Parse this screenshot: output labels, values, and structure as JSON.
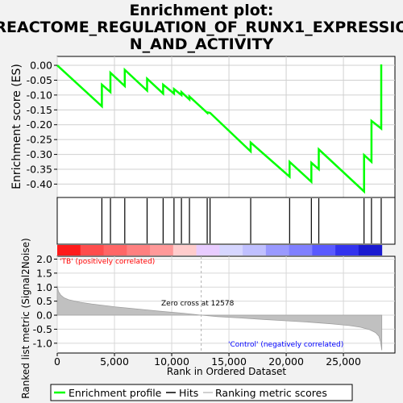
{
  "title_line1": "Enrichment plot:",
  "title_line2": "REACTOME_REGULATION_OF_RUNX1_EXPRESSIO",
  "title_line3": "N_AND_ACTIVITY",
  "colors": {
    "curve": "#00ff00",
    "ranking_fill": "#c0c0c0",
    "zero_line": "#b0b0b0",
    "tb_label": "#ff0000",
    "control_label": "#0000ff",
    "axis": "#000000"
  },
  "legend": {
    "enrichment_profile": "Enrichment profile",
    "hits": "Hits",
    "ranking_metric": "Ranking metric scores"
  },
  "annotations": {
    "tb": "'TB' (positively correlated)",
    "control": "'Control' (negatively correlated)",
    "zero_cross": "Zero cross at 12578"
  },
  "chart_data": [
    {
      "type": "line",
      "name": "enrichment-score",
      "ylabel": "Enrichment score (ES)",
      "ylim": [
        -0.445,
        0.03
      ],
      "xlim": [
        0,
        29500
      ],
      "yticks": [
        0.0,
        -0.05,
        -0.1,
        -0.15,
        -0.2,
        -0.25,
        -0.3,
        -0.35,
        -0.4
      ],
      "ytick_labels": [
        "0.00",
        "-0.05",
        "-0.10",
        "-0.15",
        "-0.20",
        "-0.25",
        "-0.30",
        "-0.35",
        "-0.40"
      ],
      "grid": true,
      "x": [
        0,
        3900,
        3900,
        4650,
        4650,
        5900,
        5900,
        7850,
        7850,
        9250,
        9250,
        10200,
        10200,
        10850,
        10850,
        11550,
        11550,
        13100,
        13100,
        13350,
        13350,
        16900,
        16900,
        20300,
        20300,
        22200,
        22200,
        22850,
        22850,
        26800,
        26800,
        27450,
        27450,
        28300,
        28300
      ],
      "y": [
        0.0,
        -0.138,
        -0.065,
        -0.09,
        -0.025,
        -0.07,
        -0.015,
        -0.085,
        -0.045,
        -0.095,
        -0.065,
        -0.095,
        -0.08,
        -0.1,
        -0.09,
        -0.115,
        -0.105,
        -0.16,
        -0.158,
        -0.16,
        -0.16,
        -0.29,
        -0.26,
        -0.375,
        -0.325,
        -0.392,
        -0.328,
        -0.35,
        -0.283,
        -0.425,
        -0.302,
        -0.325,
        -0.187,
        -0.213,
        0.003
      ]
    },
    {
      "type": "hits",
      "name": "hits",
      "x": [
        3900,
        4650,
        5900,
        7850,
        9250,
        10200,
        10850,
        11550,
        13100,
        13350,
        16900,
        20300,
        22200,
        22850,
        26800,
        27450,
        28300
      ]
    },
    {
      "type": "area",
      "name": "ranking-metric",
      "xlabel": "Rank in Ordered Dataset",
      "ylabel": "Ranked list metric (Signal2Noise)",
      "ylim": [
        -1.35,
        2.1
      ],
      "yticks": [
        2.0,
        1.5,
        1.0,
        0.5,
        0.0,
        -0.5,
        -1.0
      ],
      "ytick_labels": [
        "2.0",
        "1.5",
        "1.0",
        "0.5",
        "0.0",
        "-0.5",
        "-1.0"
      ],
      "xticks": [
        0,
        5000,
        10000,
        15000,
        20000,
        25000
      ],
      "xtick_labels": [
        "0",
        "5,000",
        "10,000",
        "15,000",
        "20,000",
        "25,000"
      ],
      "x": [
        0,
        100,
        300,
        600,
        1000,
        2000,
        3000,
        5000,
        7000,
        9000,
        11000,
        12578,
        14000,
        16000,
        18000,
        20000,
        22000,
        24000,
        25500,
        26500,
        27300,
        27800,
        28100,
        28250,
        28350
      ],
      "y": [
        1.05,
        0.85,
        0.72,
        0.62,
        0.55,
        0.46,
        0.4,
        0.3,
        0.22,
        0.14,
        0.07,
        0.0,
        -0.05,
        -0.1,
        -0.15,
        -0.2,
        -0.25,
        -0.31,
        -0.37,
        -0.43,
        -0.52,
        -0.62,
        -0.75,
        -0.95,
        -1.25
      ]
    }
  ]
}
